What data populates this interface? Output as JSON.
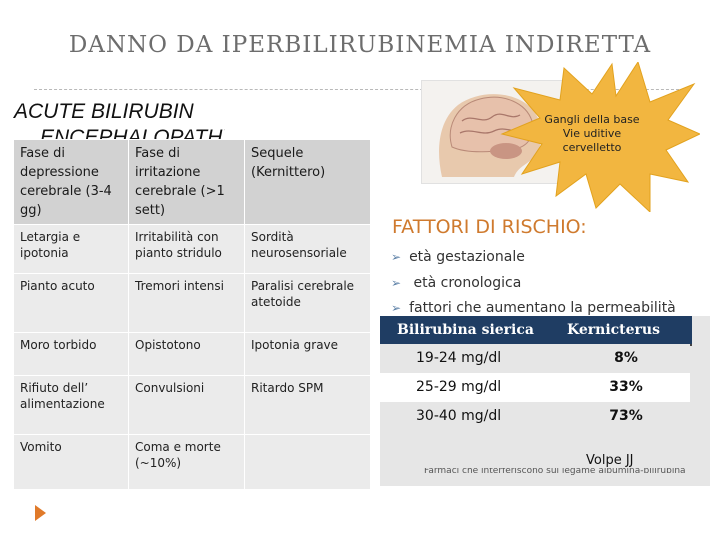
{
  "slide": {
    "title": "DANNO DA IPERBILIRUBINEMIA INDIRETTA",
    "subtitle": "ACUTE BILIRUBIN",
    "subtitle_hidden": "ENCEPHALOPATHY"
  },
  "phase_table": {
    "headers": [
      "Fase di depressione cerebrale (3-4 gg)",
      "Fase di irritazione cerebrale  (>1 sett)",
      "Sequele (Kernittero)"
    ],
    "rows": [
      [
        "Letargia e ipotonia",
        "Irritabilità con pianto stridulo",
        "Sordità neurosensoriale"
      ],
      [
        "Pianto acuto",
        "Tremori intensi",
        "Paralisi cerebrale atetoide"
      ],
      [
        "Moro torbido",
        "Opistotono",
        "Ipotonia grave"
      ],
      [
        "Rifiuto dell’ alimentazione",
        "Convulsioni",
        "Ritardo SPM"
      ],
      [
        "Vomito",
        "Coma e morte (~10%)",
        ""
      ]
    ]
  },
  "burst": {
    "lines": [
      "Gangli della base",
      "Vie uditive",
      "cervelletto"
    ],
    "color": "#f2b640"
  },
  "risk": {
    "title": "FATTORI DI RISCHIO:",
    "items": [
      "età gestazionale",
      " età cronologica",
      "fattori che aumentano la permeabilità"
    ]
  },
  "kern_table": {
    "headers": [
      "Bilirubina sierica",
      "Kernicterus"
    ],
    "rows": [
      {
        "serum": "19-24 mg/dl",
        "kern": "8%"
      },
      {
        "serum": "25-29 mg/dl",
        "kern": "33%"
      },
      {
        "serum": "30-40 mg/dl",
        "kern": "73%"
      }
    ],
    "header_color": "#1f3d63"
  },
  "source": "Volpe JJ",
  "footnote": "Farmaci che interferiscono sul legame albumina-bilirubina",
  "accent_color": "#e07a2a",
  "icons": {
    "nav": "play-arrow-icon",
    "bullet": "arrow-bullet-icon",
    "brain": "brain-illustration-icon"
  }
}
